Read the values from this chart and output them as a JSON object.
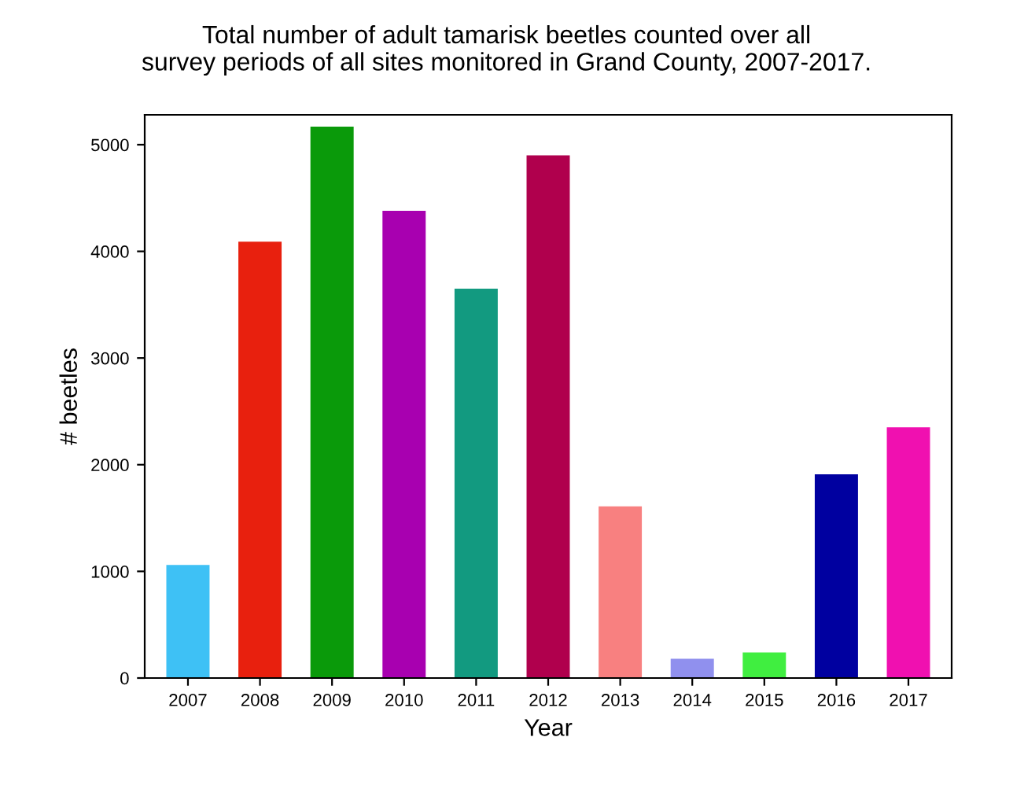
{
  "chart_data": {
    "type": "bar",
    "title": "Total number of adult tamarisk beetles counted over all\nsurvey periods of all sites monitored in Grand County, 2007-2017.",
    "xlabel": "Year",
    "ylabel": "# beetles",
    "categories": [
      "2007",
      "2008",
      "2009",
      "2010",
      "2011",
      "2012",
      "2013",
      "2014",
      "2015",
      "2016",
      "2017"
    ],
    "values": [
      1060,
      4090,
      5170,
      4380,
      3650,
      4900,
      1610,
      180,
      240,
      1910,
      2350
    ],
    "colors": [
      "#3ec1f5",
      "#e8200e",
      "#0a9a0a",
      "#a800b0",
      "#129a80",
      "#b0004d",
      "#f88080",
      "#9090ee",
      "#40ee40",
      "#0000a0",
      "#f010b0"
    ],
    "ylim": [
      0,
      5280
    ],
    "yticks": [
      0,
      1000,
      2000,
      3000,
      4000,
      5000
    ],
    "grid": false
  }
}
